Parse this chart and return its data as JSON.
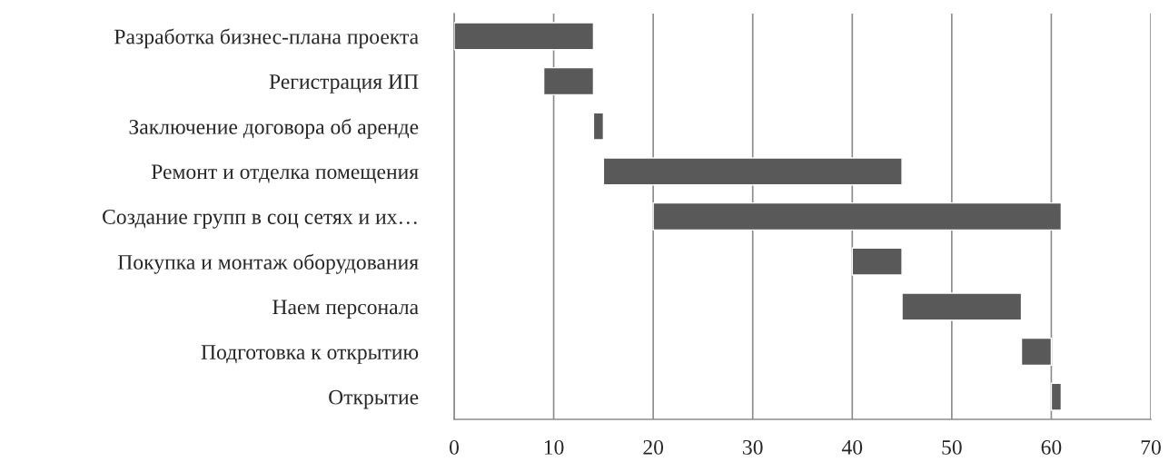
{
  "chart_data": {
    "type": "bar",
    "orientation": "horizontal",
    "categories": [
      "Разработка бизнес-плана проекта",
      "Регистрация ИП",
      "Заключение договора об аренде",
      "Ремонт и отделка помещения",
      "Создание групп в соц сетях и их…",
      "Покупка и монтаж оборудования",
      "Наем персонала",
      "Подготовка к открытию",
      "Открытие"
    ],
    "base": [
      0,
      9,
      14,
      15,
      20,
      40,
      45,
      57,
      60
    ],
    "values": [
      14,
      5,
      1,
      30,
      41,
      5,
      12,
      3,
      1
    ],
    "color": "#595959",
    "xlim": [
      0,
      70
    ],
    "xticks": [
      0,
      10,
      20,
      30,
      40,
      50,
      60,
      70
    ],
    "grid": "x",
    "legend": false
  }
}
